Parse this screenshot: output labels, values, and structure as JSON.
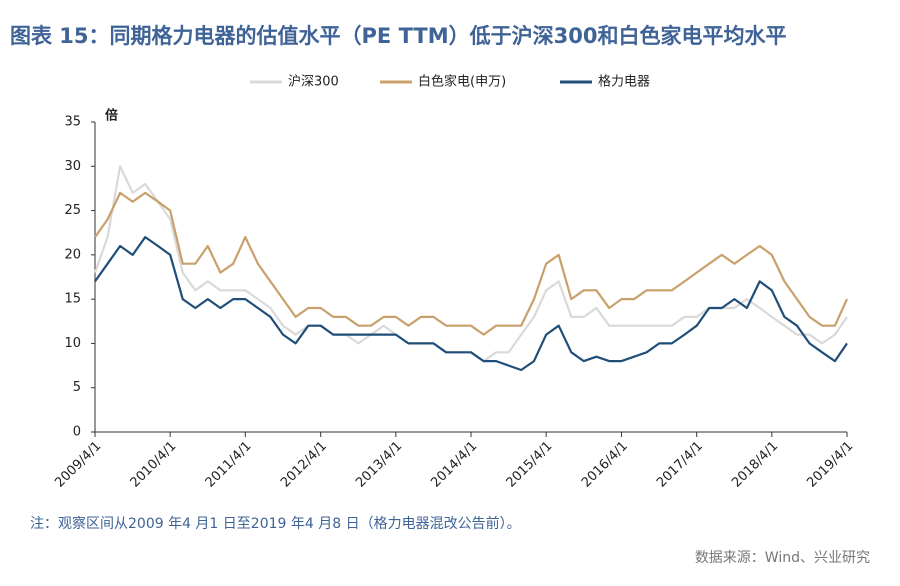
{
  "chart_data": {
    "type": "line",
    "title": "图表 15：同期格力电器的估值水平（PE TTM）低于沪深300和白色家电平均水平",
    "y_label": "倍",
    "note": "注：观察区间从2009 年4 月1 日至2019 年4 月8 日（格力电器混改公告前）。",
    "source": "数据来源：Wind、兴业研究",
    "x": [
      "2009/4/1",
      "2009/6/1",
      "2009/8/1",
      "2009/10/1",
      "2009/12/1",
      "2010/2/1",
      "2010/4/1",
      "2010/6/1",
      "2010/8/1",
      "2010/10/1",
      "2010/12/1",
      "2011/2/1",
      "2011/4/1",
      "2011/6/1",
      "2011/8/1",
      "2011/10/1",
      "2011/12/1",
      "2012/2/1",
      "2012/4/1",
      "2012/6/1",
      "2012/8/1",
      "2012/10/1",
      "2012/12/1",
      "2013/2/1",
      "2013/4/1",
      "2013/6/1",
      "2013/8/1",
      "2013/10/1",
      "2013/12/1",
      "2014/2/1",
      "2014/4/1",
      "2014/6/1",
      "2014/8/1",
      "2014/10/1",
      "2014/12/1",
      "2015/2/1",
      "2015/4/1",
      "2015/6/1",
      "2015/8/1",
      "2015/10/1",
      "2015/12/1",
      "2016/2/1",
      "2016/4/1",
      "2016/6/1",
      "2016/8/1",
      "2016/10/1",
      "2016/12/1",
      "2017/2/1",
      "2017/4/1",
      "2017/6/1",
      "2017/8/1",
      "2017/10/1",
      "2017/12/1",
      "2018/2/1",
      "2018/4/1",
      "2018/6/1",
      "2018/8/1",
      "2018/10/1",
      "2018/12/1",
      "2019/2/1",
      "2019/4/1"
    ],
    "series": [
      {
        "name": "沪深300",
        "color": "#d9d9d9",
        "values": [
          18,
          22,
          30,
          27,
          28,
          26,
          24,
          18,
          16,
          17,
          16,
          16,
          16,
          15,
          14,
          12,
          11,
          12,
          12,
          11,
          11,
          10,
          11,
          12,
          11,
          10,
          10,
          10,
          9,
          9,
          9,
          8,
          9,
          9,
          11,
          13,
          16,
          17,
          13,
          13,
          14,
          12,
          12,
          12,
          12,
          12,
          12,
          13,
          13,
          14,
          14,
          14,
          15,
          14,
          13,
          12,
          11,
          11,
          10,
          11,
          13
        ]
      },
      {
        "name": "白色家电(申万)",
        "color": "#c9a06b",
        "values": [
          22,
          24,
          27,
          26,
          27,
          26,
          25,
          19,
          19,
          21,
          18,
          19,
          22,
          19,
          17,
          15,
          13,
          14,
          14,
          13,
          13,
          12,
          12,
          13,
          13,
          12,
          13,
          13,
          12,
          12,
          12,
          11,
          12,
          12,
          12,
          15,
          19,
          20,
          15,
          16,
          16,
          14,
          15,
          15,
          16,
          16,
          16,
          17,
          18,
          19,
          20,
          19,
          20,
          21,
          20,
          17,
          15,
          13,
          12,
          12,
          15
        ]
      },
      {
        "name": "格力电器",
        "color": "#1f4e79",
        "values": [
          17,
          19,
          21,
          20,
          22,
          21,
          20,
          15,
          14,
          15,
          14,
          15,
          15,
          14,
          13,
          11,
          10,
          12,
          12,
          11,
          11,
          11,
          11,
          11,
          11,
          10,
          10,
          10,
          9,
          9,
          9,
          8,
          8,
          7.5,
          7,
          8,
          11,
          12,
          9,
          8,
          8.5,
          8,
          8,
          8.5,
          9,
          10,
          10,
          11,
          12,
          14,
          14,
          15,
          14,
          17,
          16,
          13,
          12,
          10,
          9,
          8,
          10
        ]
      }
    ],
    "xlim": [
      "2009/4/1",
      "2019/4/1"
    ],
    "xticks": [
      "2009/4/1",
      "2010/4/1",
      "2011/4/1",
      "2012/4/1",
      "2013/4/1",
      "2014/4/1",
      "2015/4/1",
      "2016/4/1",
      "2017/4/1",
      "2018/4/1",
      "2019/4/1"
    ],
    "ylim": [
      0,
      35
    ],
    "yticks": [
      0,
      5,
      10,
      15,
      20,
      25,
      30,
      35
    ],
    "grid": false,
    "legend": "top"
  }
}
